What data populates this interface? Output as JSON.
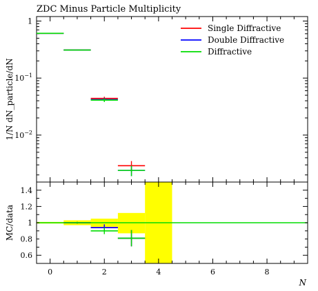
{
  "chart_data": [
    {
      "panel": "main",
      "type": "line",
      "title": "ZDC Minus Particle Multiplicity",
      "ylabel": "1/N dN_particle/dN",
      "yscale": "log",
      "ylim": [
        0.0015,
        1.2
      ],
      "xlim": [
        -0.5,
        9.5
      ],
      "yticks": [
        {
          "value": 1,
          "label": "1"
        },
        {
          "value": 0.1,
          "label": "10^-1"
        },
        {
          "value": 0.01,
          "label": "10^-2"
        }
      ],
      "series": [
        {
          "name": "Single Diffractive",
          "color": "#ff0000",
          "points": [
            {
              "x": 0,
              "y": 0.61
            },
            {
              "x": 1,
              "y": 0.31
            },
            {
              "x": 2,
              "y": 0.044
            },
            {
              "x": 3,
              "y": 0.0029
            }
          ],
          "errors": [
            0,
            0,
            0.003,
            0.0006
          ]
        },
        {
          "name": "Double Diffractive",
          "color": "#0000ff",
          "points": [
            {
              "x": 0,
              "y": 0.61
            },
            {
              "x": 1,
              "y": 0.31
            },
            {
              "x": 2,
              "y": 0.042
            },
            {
              "x": 3,
              "y": 0.0024
            }
          ],
          "errors": [
            0,
            0,
            0.003,
            0.0005
          ]
        },
        {
          "name": "Diffractive",
          "color": "#00dd00",
          "points": [
            {
              "x": 0,
              "y": 0.61
            },
            {
              "x": 1,
              "y": 0.31
            },
            {
              "x": 2,
              "y": 0.041
            },
            {
              "x": 3,
              "y": 0.0024
            }
          ],
          "errors": [
            0,
            0,
            0.003,
            0.0005
          ]
        }
      ]
    },
    {
      "panel": "ratio",
      "type": "line",
      "ylabel": "MC/data",
      "xlabel": "N",
      "ylim": [
        0.5,
        1.5
      ],
      "xlim": [
        -0.5,
        9.5
      ],
      "yticks": [
        {
          "value": 0.6,
          "label": "0.6"
        },
        {
          "value": 0.8,
          "label": "0.8"
        },
        {
          "value": 1,
          "label": "1"
        },
        {
          "value": 1.2,
          "label": "1.2"
        },
        {
          "value": 1.4,
          "label": "1.4"
        }
      ],
      "xticks": [
        {
          "value": 0,
          "label": "0"
        },
        {
          "value": 2,
          "label": "2"
        },
        {
          "value": 4,
          "label": "4"
        },
        {
          "value": 6,
          "label": "6"
        },
        {
          "value": 8,
          "label": "8"
        }
      ],
      "uncertainty_band": {
        "color": "#ffff00",
        "bins": [
          {
            "x": 0,
            "lo": 0.99,
            "hi": 1.01
          },
          {
            "x": 1,
            "lo": 0.97,
            "hi": 1.03
          },
          {
            "x": 2,
            "lo": 0.95,
            "hi": 1.05
          },
          {
            "x": 3,
            "lo": 0.87,
            "hi": 1.12
          },
          {
            "x": 4,
            "lo": 0.5,
            "hi": 1.5
          }
        ]
      },
      "series": [
        {
          "name": "Single Diffractive",
          "color": "#ff0000",
          "points": [
            {
              "x": 0,
              "y": 1.0
            },
            {
              "x": 1,
              "y": 1.0
            },
            {
              "x": 2,
              "y": 0.94
            },
            {
              "x": 3,
              "y": 0.81
            }
          ],
          "errors": [
            0,
            0.01,
            0.04,
            0.1
          ]
        },
        {
          "name": "Double Diffractive",
          "color": "#0000ff",
          "points": [
            {
              "x": 0,
              "y": 1.0
            },
            {
              "x": 1,
              "y": 1.0
            },
            {
              "x": 2,
              "y": 0.94
            },
            {
              "x": 3,
              "y": 0.81
            }
          ],
          "errors": [
            0,
            0.01,
            0.04,
            0.1
          ]
        },
        {
          "name": "Diffractive",
          "color": "#00dd00",
          "points": [
            {
              "x": 0,
              "y": 1.0
            },
            {
              "x": 1,
              "y": 1.0
            },
            {
              "x": 2,
              "y": 0.9
            },
            {
              "x": 3,
              "y": 0.81
            }
          ],
          "errors": [
            0,
            0.01,
            0.04,
            0.1
          ]
        }
      ]
    }
  ]
}
